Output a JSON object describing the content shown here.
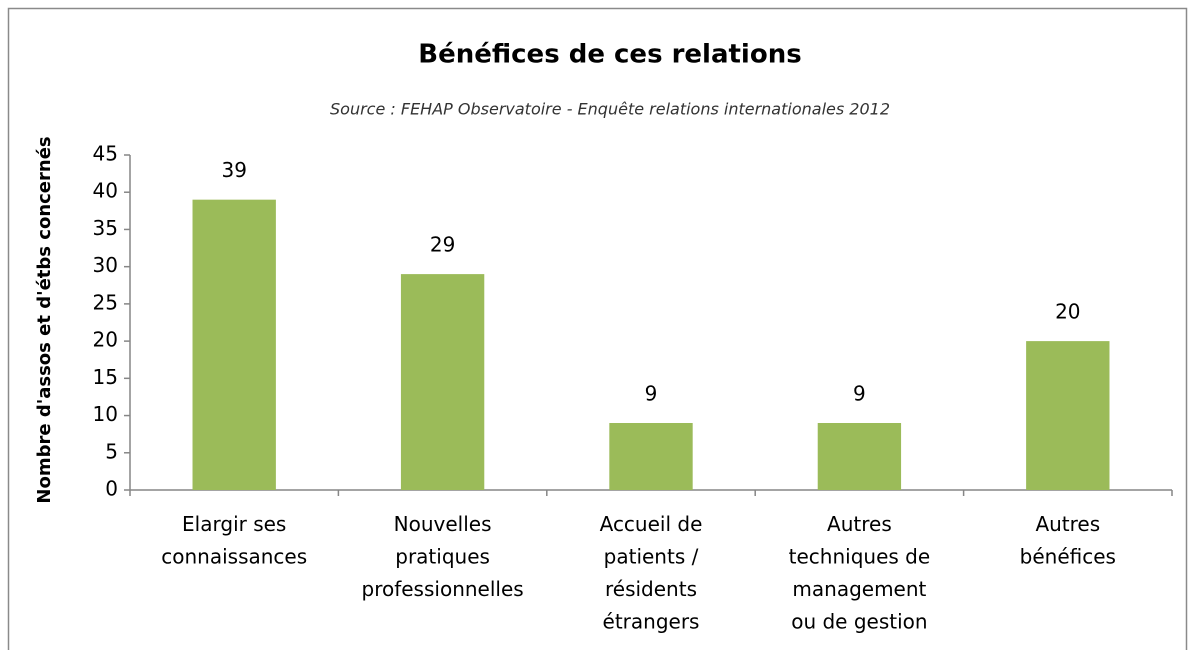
{
  "chart_data": {
    "type": "bar",
    "title": "Bénéfices de ces relations",
    "subtitle": "Source : FEHAP Observatoire - Enquête relations internationales 2012",
    "y_label": "Nombre d'assos et d'étbs concernés",
    "categories": [
      "Elargir ses\nconnaissances",
      "Nouvelles\npratiques\nprofessionnelles",
      "Accueil de\npatients /\nrésidents\nétrangers",
      "Autres\ntechniques de\nmanagement\nou de gestion",
      "Autres\nbénéfices"
    ],
    "values": [
      39,
      29,
      9,
      9,
      20
    ],
    "color": "#9bbb59",
    "ylim": [
      0,
      45
    ],
    "yticks": [
      0,
      5,
      10,
      15,
      20,
      25,
      30,
      35,
      40,
      45
    ],
    "grid": false
  }
}
